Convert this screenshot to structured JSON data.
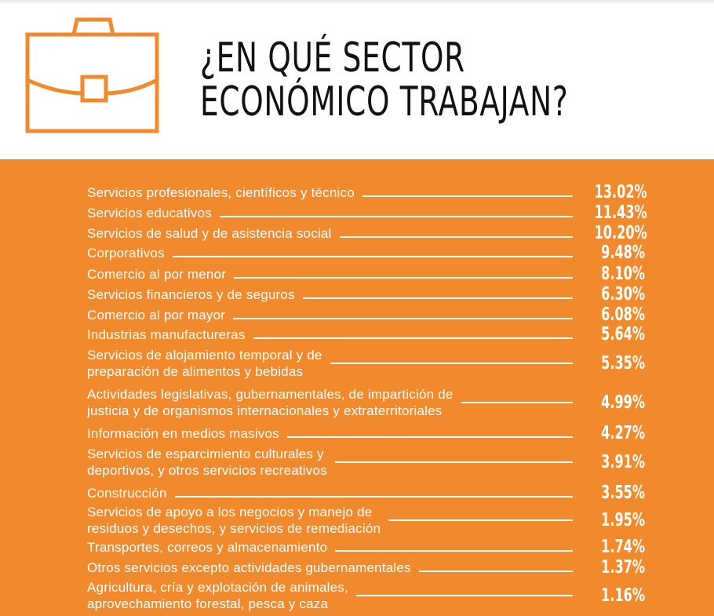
{
  "header": {
    "title_line1": "¿EN QUÉ SECTOR",
    "title_line2": "ECONÓMICO TRABAJAN?",
    "icon": "briefcase-icon"
  },
  "colors": {
    "accent": "#f18a2d",
    "text_on_accent": "#ffffff",
    "title": "#111111"
  },
  "rows": [
    {
      "lines": [
        "Servicios profesionales, científicos y técnico"
      ],
      "value": "13.02%"
    },
    {
      "lines": [
        "Servicios educativos"
      ],
      "value": "11.43%"
    },
    {
      "lines": [
        "Servicios de salud y de asistencia social"
      ],
      "value": "10.20%"
    },
    {
      "lines": [
        "Corporativos"
      ],
      "value": "9.48%"
    },
    {
      "lines": [
        "Comercio al por menor"
      ],
      "value": "8.10%"
    },
    {
      "lines": [
        "Servicios financieros y de seguros"
      ],
      "value": "6.30%"
    },
    {
      "lines": [
        "Comercio al por mayor"
      ],
      "value": "6.08%"
    },
    {
      "lines": [
        "Industrias manufactureras"
      ],
      "value": "5.64%"
    },
    {
      "lines": [
        "Servicios de alojamiento temporal y de",
        "preparación de alimentos y bebidas"
      ],
      "value": "5.35%"
    },
    {
      "lines": [
        "Actividades legislativas, gubernamentales, de impartición de",
        "justicia y de organismos internacionales y extraterritoriales"
      ],
      "value": "4.99%"
    },
    {
      "lines": [
        "Información en medios masivos"
      ],
      "value": "4.27%"
    },
    {
      "lines": [
        "Servicios de esparcimiento culturales y",
        "deportivos, y otros servicios recreativos"
      ],
      "value": "3.91%"
    },
    {
      "lines": [
        "Construcción"
      ],
      "value": "3.55%"
    },
    {
      "lines": [
        "Servicios de apoyo a los negocios y manejo de",
        "residuos y desechos, y servicios de remediación"
      ],
      "value": "1.95%"
    },
    {
      "lines": [
        "Transportes, correos y almacenamiento"
      ],
      "value": "1.74%"
    },
    {
      "lines": [
        "Otros servicios excepto actividades gubernamentales"
      ],
      "value": "1.37%"
    },
    {
      "lines": [
        "Agricultura, cría y explotación de animales,",
        "aprovechamiento forestal, pesca y caza"
      ],
      "value": "1.16%"
    }
  ]
}
